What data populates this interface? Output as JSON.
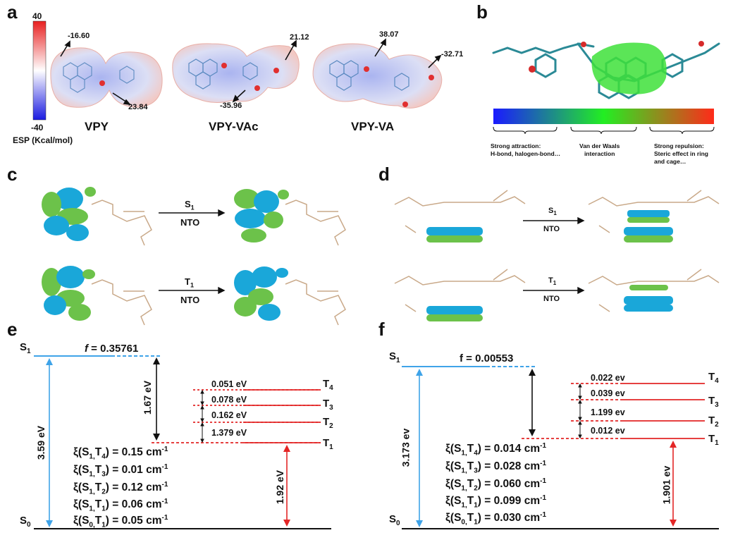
{
  "panels": {
    "a": {
      "letter": "a",
      "scale": {
        "max": "40",
        "min": "-40",
        "label": "ESP (Kcal/mol)"
      },
      "molecules": [
        {
          "name": "VPY",
          "values": [
            "-16.60",
            "23.84"
          ]
        },
        {
          "name": "VPY-VAc",
          "values": [
            "21.12",
            "-35.96"
          ]
        },
        {
          "name": "VPY-VA",
          "values": [
            "38.07",
            "-32.71"
          ]
        }
      ]
    },
    "b": {
      "letter": "b",
      "legend": [
        {
          "title": "Strong attraction:",
          "detail": "H-bond, halogen-bond…"
        },
        {
          "title": "Van der Waals",
          "detail": "interaction"
        },
        {
          "title": "Strong repulsion:",
          "detail": "Steric effect in ring",
          "detail2": "and cage…"
        }
      ]
    },
    "c": {
      "letter": "c",
      "transitions": [
        {
          "state": "S",
          "sub": "1",
          "method": "NTO"
        },
        {
          "state": "T",
          "sub": "1",
          "method": "NTO"
        }
      ]
    },
    "d": {
      "letter": "d",
      "transitions": [
        {
          "state": "S",
          "sub": "1",
          "method": "NTO"
        },
        {
          "state": "T",
          "sub": "1",
          "method": "NTO"
        }
      ]
    },
    "e": {
      "letter": "e",
      "s1": "S",
      "s1_sub": "1",
      "s0": "S",
      "s0_sub": "0",
      "f_sym": "f",
      "f_val": "= 0.35761",
      "s1_gap": "3.59 eV",
      "st_gap": "1.67 eV",
      "t1_gap": "1.92 eV",
      "triplets": [
        {
          "label": "T",
          "sub": "4"
        },
        {
          "label": "T",
          "sub": "3"
        },
        {
          "label": "T",
          "sub": "2"
        },
        {
          "label": "T",
          "sub": "1"
        }
      ],
      "gaps": [
        "0.051 eV",
        "0.078 eV",
        "0.162 eV",
        "1.379 eV"
      ],
      "xi": [
        {
          "pre": "ξ(S",
          "a": "1,",
          "mid": "T",
          "b": "4",
          "post": ") = 0.15 cm",
          "exp": "-1"
        },
        {
          "pre": "ξ(S",
          "a": "1,",
          "mid": "T",
          "b": "3",
          "post": ") = 0.01 cm",
          "exp": "-1"
        },
        {
          "pre": "ξ(S",
          "a": "1,",
          "mid": "T",
          "b": "2",
          "post": ") = 0.12 cm",
          "exp": "-1"
        },
        {
          "pre": "ξ(S",
          "a": "1,",
          "mid": "T",
          "b": "1",
          "post": ") = 0.06 cm",
          "exp": "-1"
        },
        {
          "pre": "ξ(S",
          "a": "0,",
          "mid": "T",
          "b": "1",
          "post": ") = 0.05 cm",
          "exp": "-1"
        }
      ]
    },
    "f": {
      "letter": "f",
      "s1": "S",
      "s1_sub": "1",
      "s0": "S",
      "s0_sub": "0",
      "f_text": "f = 0.00553",
      "s1_gap": "3.173 ev",
      "t1_gap": "1.901 ev",
      "triplets": [
        {
          "label": "T",
          "sub": "4"
        },
        {
          "label": "T",
          "sub": "3"
        },
        {
          "label": "T",
          "sub": "2"
        },
        {
          "label": "T",
          "sub": "1"
        }
      ],
      "gaps": [
        "0.022 ev",
        "0.039 ev",
        "1.199 ev",
        "0.012 ev"
      ],
      "xi": [
        {
          "pre": "ξ(S",
          "a": "1,",
          "mid": "T",
          "b": "4",
          "post": ") = 0.014 cm",
          "exp": "-1"
        },
        {
          "pre": "ξ(S",
          "a": "1,",
          "mid": "T",
          "b": "3",
          "post": ") = 0.028 cm",
          "exp": "-1"
        },
        {
          "pre": "ξ(S",
          "a": "1,",
          "mid": "T",
          "b": "2",
          "post": ") = 0.060 cm",
          "exp": "-1"
        },
        {
          "pre": "ξ(S",
          "a": "1,",
          "mid": "T",
          "b": "1",
          "post": ") = 0.099 cm",
          "exp": "-1"
        },
        {
          "pre": "ξ(S",
          "a": "0,",
          "mid": "T",
          "b": "1",
          "post": ") = 0.030 cm",
          "exp": "-1"
        }
      ]
    }
  },
  "colors": {
    "singlet": "#3fa3e8",
    "triplet": "#e32626",
    "lobe_blue": "#1aa7d9",
    "lobe_green": "#6cc24a"
  }
}
